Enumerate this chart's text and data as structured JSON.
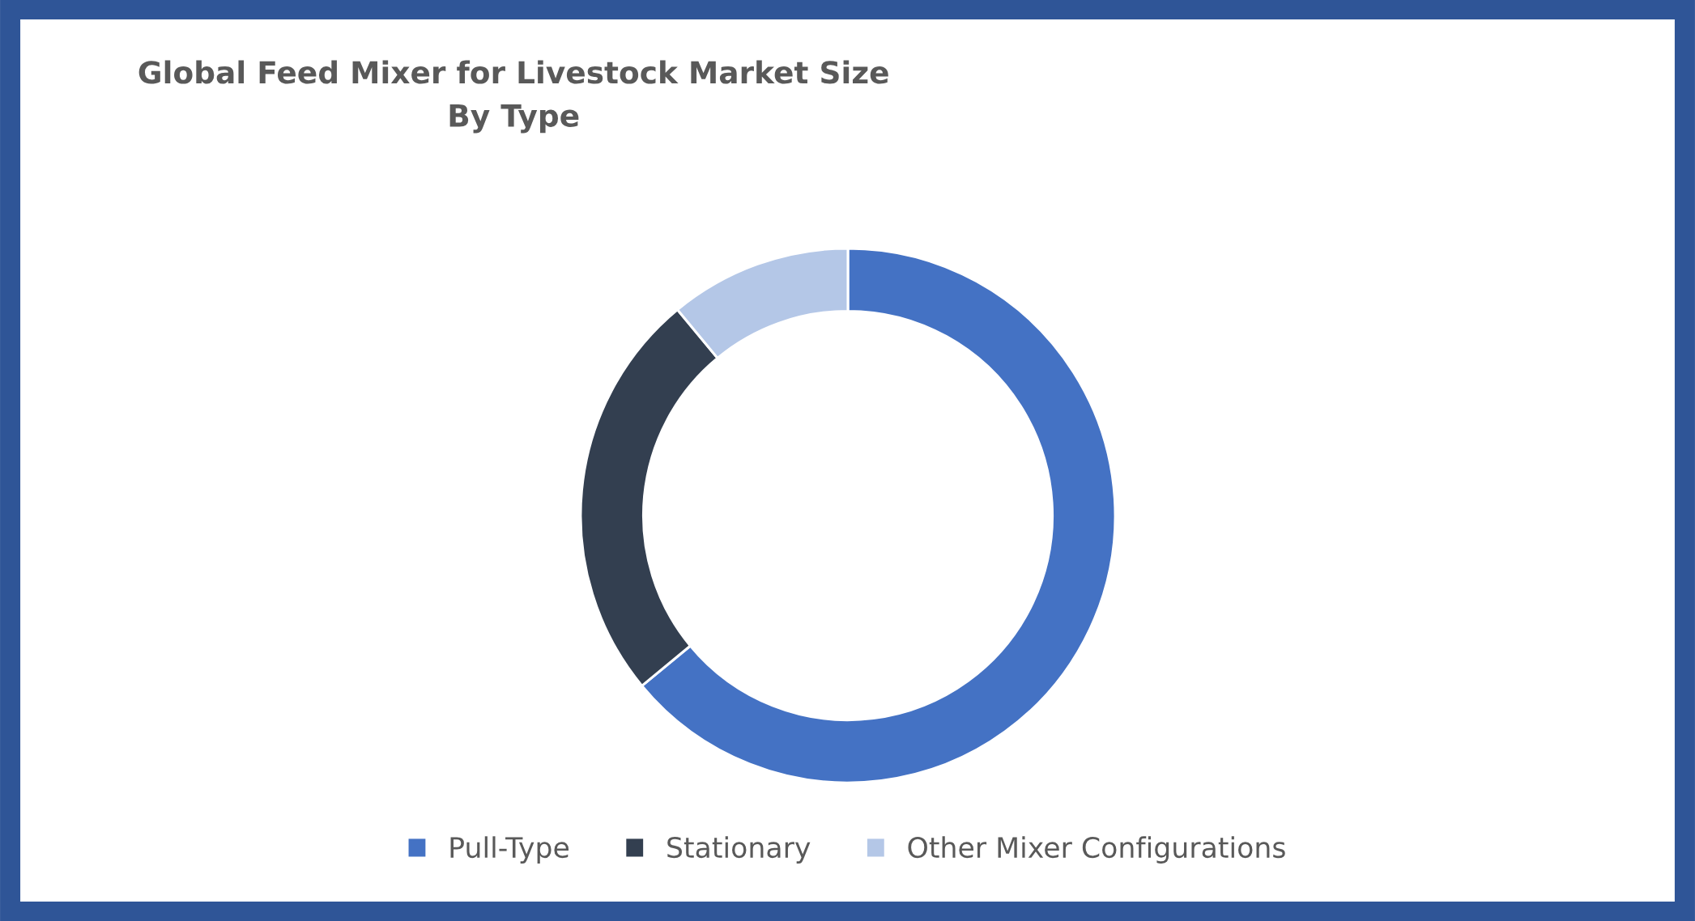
{
  "chart_data": {
    "type": "donut",
    "title": "Global Feed Mixer for Livestock Market Size\nBy Type",
    "categories": [
      "Pull-Type",
      "Stationary",
      "Other Mixer Configurations"
    ],
    "values": [
      64,
      25,
      11
    ],
    "colors": [
      "#4472c4",
      "#333f50",
      "#b4c7e7"
    ],
    "legend": "bottom"
  }
}
